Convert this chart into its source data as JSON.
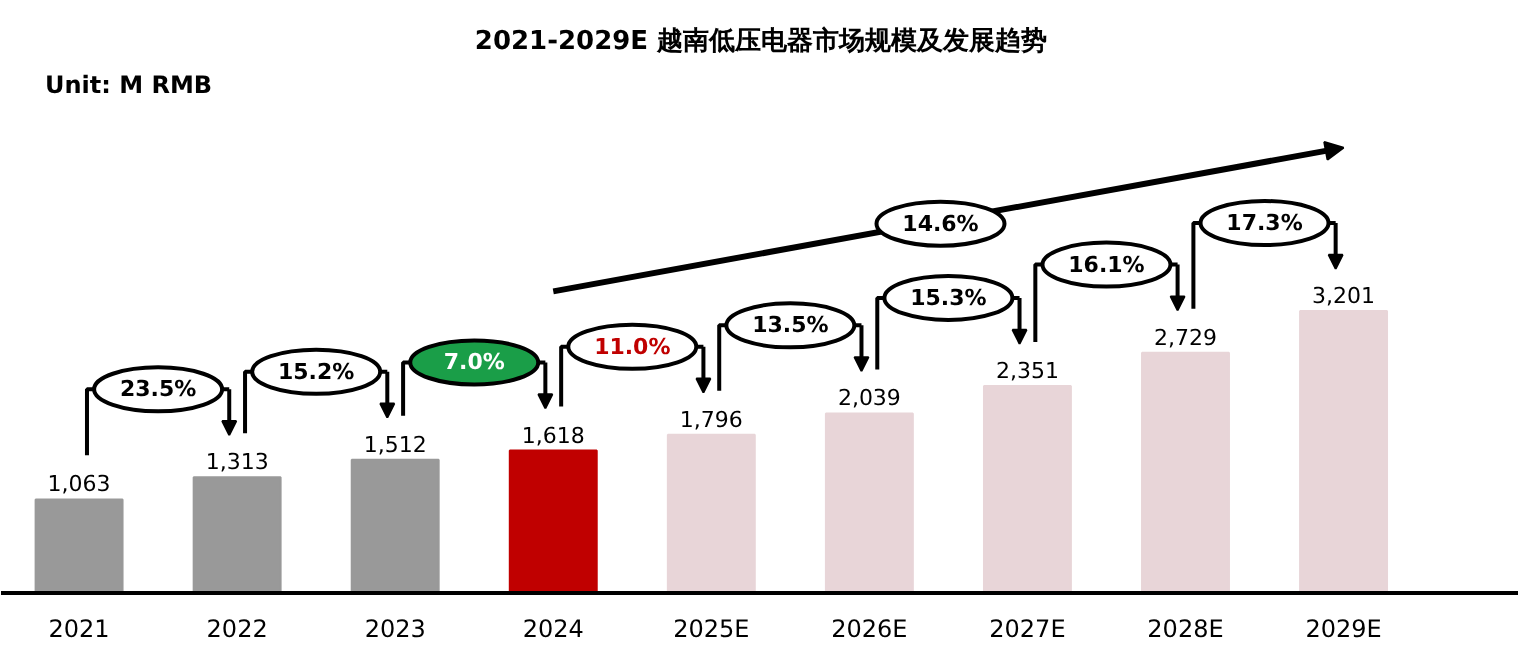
{
  "chart_data": {
    "type": "bar",
    "title": "2021-2029E 越南低压电器市场规模及发展趋势",
    "subtitle": "Unit: M RMB",
    "categories": [
      "2021",
      "2022",
      "2023",
      "2024",
      "2025E",
      "2026E",
      "2027E",
      "2028E",
      "2029E"
    ],
    "values": [
      1063,
      1313,
      1512,
      1618,
      1796,
      2039,
      2351,
      2729,
      3201
    ],
    "colors": [
      "#999999",
      "#999999",
      "#999999",
      "#c00000",
      "#e8d5d8",
      "#e8d5d8",
      "#e8d5d8",
      "#e8d5d8",
      "#e8d5d8"
    ],
    "value_labels": [
      "1,063",
      "1,313",
      "1,512",
      "1,618",
      "1,796",
      "2,039",
      "2,351",
      "2,729",
      "3,201"
    ],
    "annotations": [
      "23.5%",
      "15.2%",
      "7.0%",
      "11.0%",
      "13.5%",
      "15.3%",
      "16.1%",
      "17.3%",
      "14.6%"
    ],
    "grid": false
  }
}
